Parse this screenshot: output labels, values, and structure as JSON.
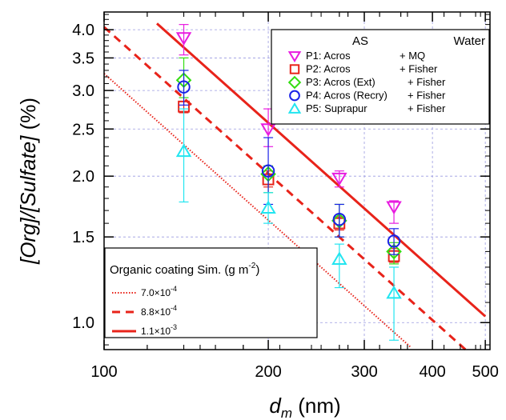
{
  "chart_data": {
    "type": "scatter",
    "xlabel": {
      "main": "d",
      "sub": "m",
      "rest": " (nm)"
    },
    "ylabel": {
      "text": "[Org]/[Sulfate]",
      "unit": " (%)"
    },
    "xscale": "log",
    "yscale": "log",
    "xlim": [
      100,
      510
    ],
    "ylim": [
      0.88,
      4.35
    ],
    "x_ticks": [
      100,
      200,
      300,
      400,
      500
    ],
    "x_tick_labels": [
      "100",
      "200",
      "300",
      "400",
      "500"
    ],
    "y_ticks": [
      1.0,
      1.5,
      2.0,
      2.5,
      3.0,
      3.5,
      4.0
    ],
    "y_tick_labels": [
      "1.0",
      "1.5",
      "2.0",
      "2.5",
      "3.0",
      "3.5",
      "4.0"
    ],
    "grid": true,
    "legend": {
      "placement": "top-right",
      "header_left": "AS",
      "header_right": "Water",
      "entries": [
        {
          "label": "P1: Acros",
          "water": "+ MQ"
        },
        {
          "label": "P2: Acros",
          "water": "+ Fisher"
        },
        {
          "label": "P3: Acros (Ext)",
          "water": "+ Fisher"
        },
        {
          "label": "P4: Acros (Recry)",
          "water": "+ Fisher"
        },
        {
          "label": "P5: Suprapur",
          "water": "+ Fisher"
        }
      ]
    },
    "series": [
      {
        "name": "P1: Acros",
        "marker": "triangle-down",
        "color": "#e81be0",
        "x": [
          140,
          200,
          270,
          340
        ],
        "y": [
          3.85,
          2.5,
          1.98,
          1.73
        ],
        "err_low": [
          3.55,
          2.3,
          1.9,
          1.6
        ],
        "err_high": [
          4.1,
          2.75,
          2.05,
          1.78
        ]
      },
      {
        "name": "P2: Acros",
        "marker": "square",
        "color": "#e8231a",
        "x": [
          140,
          200,
          270,
          340
        ],
        "y": [
          2.78,
          1.97,
          1.6,
          1.37
        ],
        "err_low": [
          2.7,
          1.9,
          1.55,
          1.33
        ],
        "err_high": [
          2.85,
          2.05,
          1.65,
          1.42
        ]
      },
      {
        "name": "P3: Acros (Ext)",
        "marker": "diamond",
        "color": "#33dd11",
        "x": [
          140,
          200,
          270,
          340
        ],
        "y": [
          3.15,
          2.02,
          1.62,
          1.4
        ],
        "err_low": [
          2.9,
          1.85,
          1.5,
          1.32
        ],
        "err_high": [
          3.5,
          2.1,
          1.75,
          1.46
        ]
      },
      {
        "name": "P4: Acros (Recry)",
        "marker": "circle",
        "color": "#1a22e8",
        "x": [
          140,
          200,
          270,
          340
        ],
        "y": [
          3.05,
          2.05,
          1.63,
          1.47
        ],
        "err_low": [
          2.8,
          1.75,
          1.5,
          1.38
        ],
        "err_high": [
          3.3,
          2.4,
          1.75,
          1.56
        ]
      },
      {
        "name": "P5: Suprapur",
        "marker": "triangle-up",
        "color": "#22e5f0",
        "x": [
          140,
          200,
          270,
          340
        ],
        "y": [
          2.25,
          1.72,
          1.35,
          1.15
        ],
        "err_low": [
          1.77,
          1.6,
          1.18,
          0.92
        ],
        "err_high": [
          2.75,
          1.85,
          1.45,
          1.3
        ]
      }
    ],
    "simulations": {
      "title_text": "Organic coating Sim. (g m",
      "title_exp": "-2",
      "title_close": ")",
      "placement": "bottom-left",
      "color": "#e8231a",
      "lines": [
        {
          "label_mantissa": "7.0×10",
          "label_exp": "-4",
          "style": "dotted",
          "x": [
            100,
            365
          ],
          "y": [
            3.25,
            0.89
          ]
        },
        {
          "label_mantissa": "8.8×10",
          "label_exp": "-4",
          "style": "dashed",
          "x": [
            100,
            460
          ],
          "y": [
            4.05,
            0.88
          ]
        },
        {
          "label_mantissa": "1.1×10",
          "label_exp": "-3",
          "style": "solid",
          "x": [
            125,
            500
          ],
          "y": [
            4.12,
            1.03
          ]
        }
      ]
    }
  }
}
